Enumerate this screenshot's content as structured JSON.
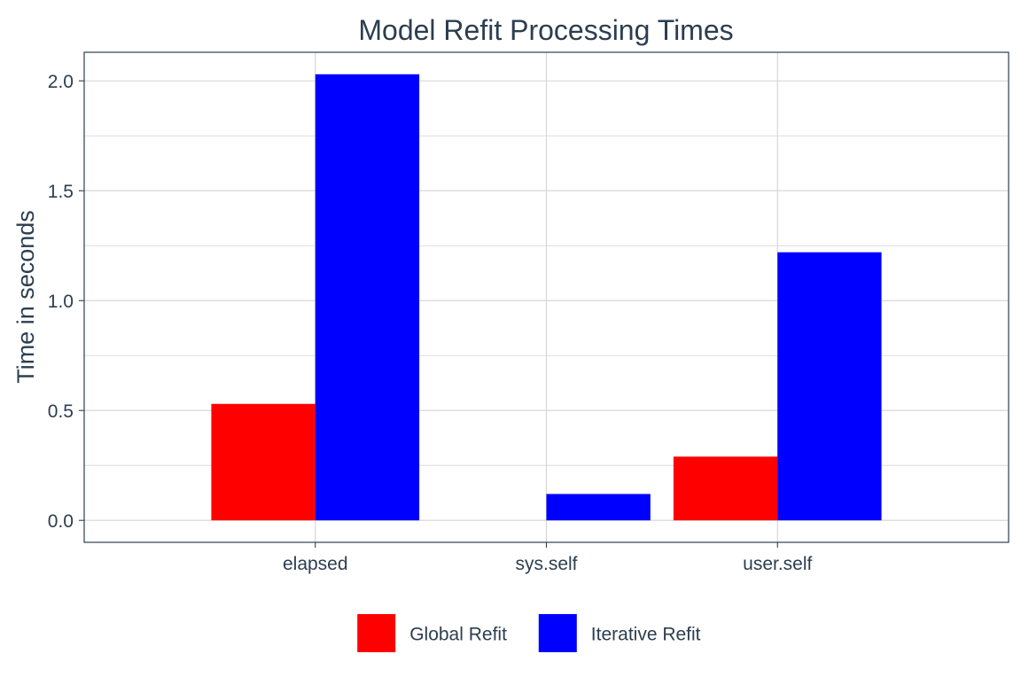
{
  "chart_data": {
    "type": "bar",
    "title": "Model Refit Processing Times",
    "xlabel": "",
    "ylabel": "Time in seconds",
    "categories": [
      "elapsed",
      "sys.self",
      "user.self"
    ],
    "series": [
      {
        "name": "Global Refit",
        "color": "#ff0000",
        "values": [
          0.53,
          0.0,
          0.29
        ]
      },
      {
        "name": "Iterative Refit",
        "color": "#0000ff",
        "values": [
          2.03,
          0.12,
          1.22
        ]
      }
    ],
    "ylim": [
      -0.1,
      2.13
    ],
    "yticks": [
      0.0,
      0.5,
      1.0,
      1.5,
      2.0
    ],
    "ytick_labels": [
      "0.0",
      "0.5",
      "1.0",
      "1.5",
      "2.0"
    ],
    "grid": true,
    "legend_position": "bottom",
    "text_color": "#2c3e50",
    "grid_color": "#d3d3d3"
  }
}
